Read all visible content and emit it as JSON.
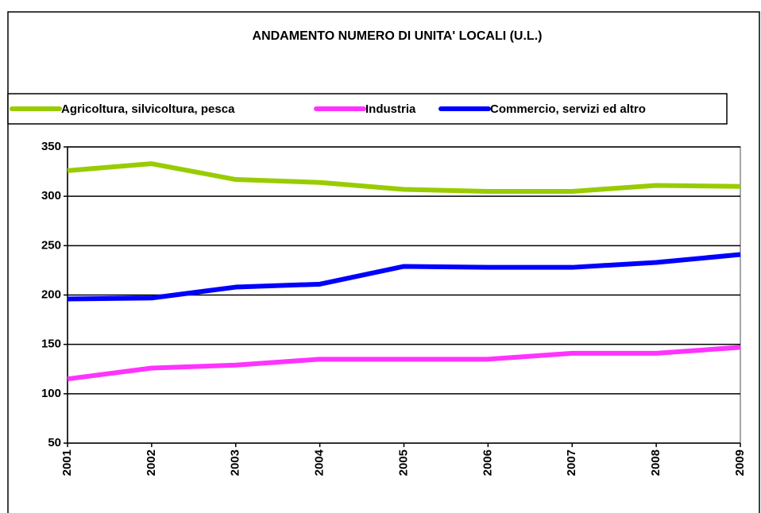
{
  "chart_data": {
    "type": "line",
    "title": "ANDAMENTO NUMERO DI UNITA' LOCALI  (U.L.)",
    "categories": [
      "2001",
      "2002",
      "2003",
      "2004",
      "2005",
      "2006",
      "2007",
      "2008",
      "2009"
    ],
    "series": [
      {
        "name": "Agricoltura, silvicoltura, pesca",
        "color": "#99cc00",
        "values": [
          326,
          333,
          317,
          314,
          307,
          305,
          305,
          311,
          310
        ]
      },
      {
        "name": "Industria",
        "color": "#ff33ff",
        "values": [
          115,
          126,
          129,
          135,
          135,
          135,
          141,
          141,
          147
        ]
      },
      {
        "name": "Commercio, servizi ed altro",
        "color": "#0000ff",
        "values": [
          196,
          197,
          208,
          211,
          229,
          228,
          228,
          233,
          241
        ]
      }
    ],
    "ylim": [
      50,
      350
    ],
    "yticks": [
      50,
      100,
      150,
      200,
      250,
      300,
      350
    ],
    "grid": true,
    "legend": "top"
  }
}
